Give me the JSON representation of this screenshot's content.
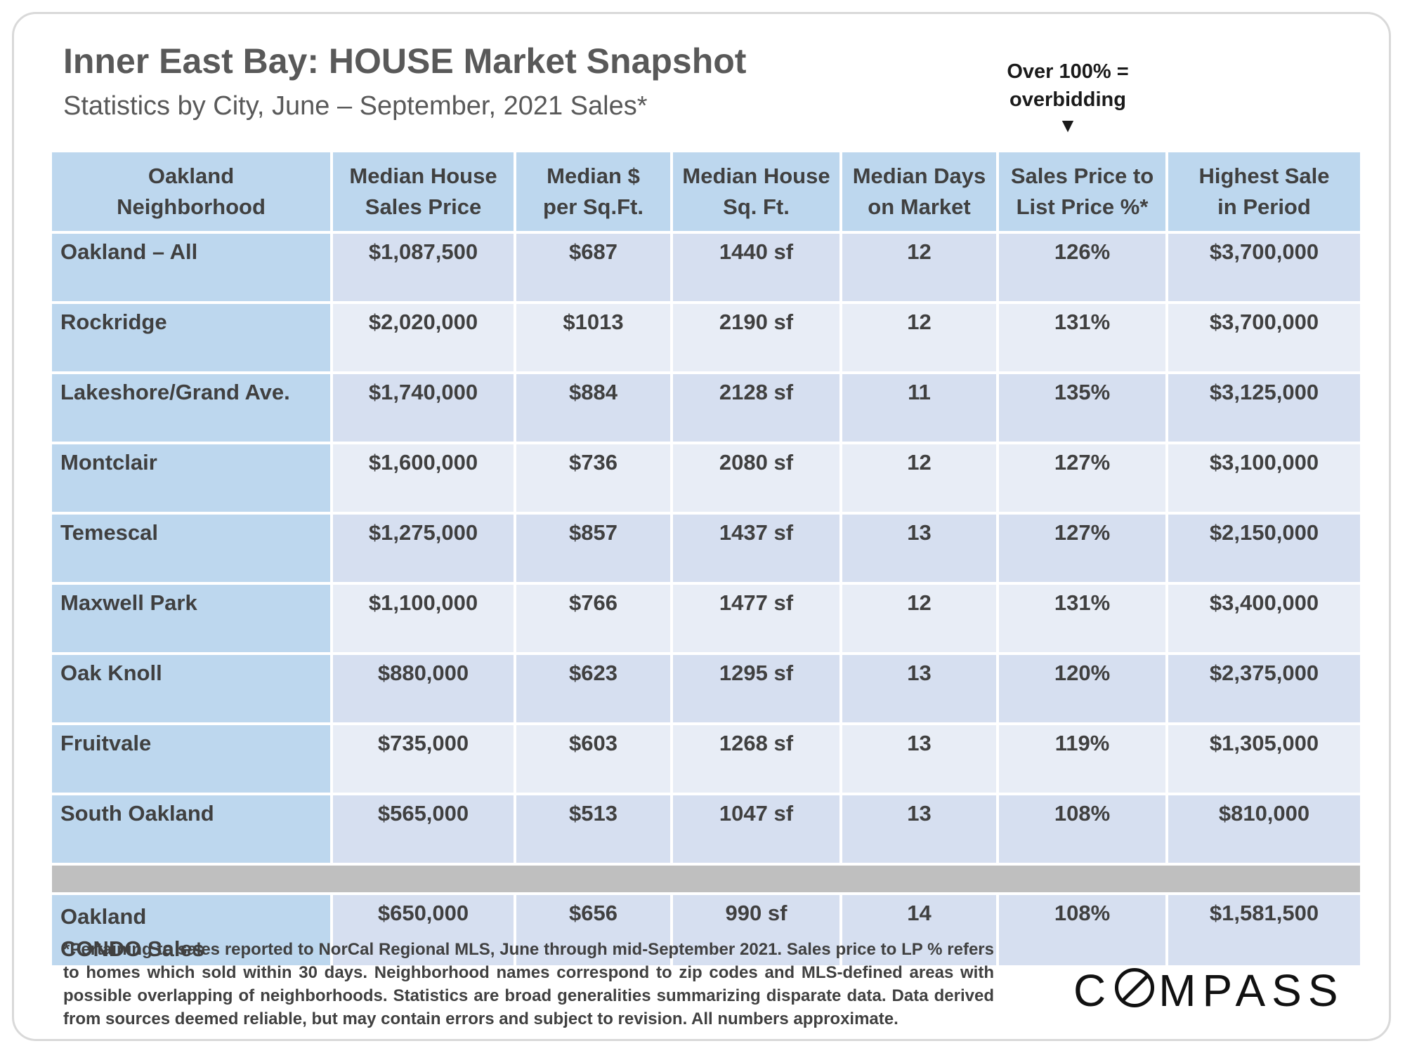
{
  "title": "Inner East Bay: HOUSE Market Snapshot",
  "subtitle": "Statistics by City, June – September, 2021 Sales*",
  "note": {
    "line1": "Over 100% =",
    "line2": "overbidding",
    "arrow": "▼"
  },
  "table": {
    "headers": [
      [
        "Oakland",
        "Neighborhood"
      ],
      [
        "Median House",
        "Sales Price"
      ],
      [
        "Median $",
        "per Sq.Ft."
      ],
      [
        "Median House",
        "Sq. Ft."
      ],
      [
        "Median Days",
        "on Market"
      ],
      [
        "Sales Price to",
        "List Price %*"
      ],
      [
        "Highest Sale",
        "in Period"
      ]
    ],
    "rows": [
      [
        "Oakland – All",
        "$1,087,500",
        "$687",
        "1440 sf",
        "12",
        "126%",
        "$3,700,000"
      ],
      [
        "Rockridge",
        "$2,020,000",
        "$1013",
        "2190 sf",
        "12",
        "131%",
        "$3,700,000"
      ],
      [
        "Lakeshore/Grand Ave.",
        "$1,740,000",
        "$884",
        "2128 sf",
        "11",
        "135%",
        "$3,125,000"
      ],
      [
        "Montclair",
        "$1,600,000",
        "$736",
        "2080 sf",
        "12",
        "127%",
        "$3,100,000"
      ],
      [
        "Temescal",
        "$1,275,000",
        "$857",
        "1437 sf",
        "13",
        "127%",
        "$2,150,000"
      ],
      [
        "Maxwell Park",
        "$1,100,000",
        "$766",
        "1477 sf",
        "12",
        "131%",
        "$3,400,000"
      ],
      [
        "Oak Knoll",
        "$880,000",
        "$623",
        "1295 sf",
        "13",
        "120%",
        "$2,375,000"
      ],
      [
        "Fruitvale",
        "$735,000",
        "$603",
        "1268 sf",
        "13",
        "119%",
        "$1,305,000"
      ],
      [
        "South Oakland",
        "$565,000",
        "$513",
        "1047 sf",
        "13",
        "108%",
        "$810,000"
      ]
    ],
    "condo": {
      "name_line1": "Oakland",
      "name_line2": "CONDO Sales",
      "values": [
        "$650,000",
        "$656",
        "990 sf",
        "14",
        "108%",
        "$1,581,500"
      ]
    }
  },
  "footnote": "*Pertaining to sales reported to NorCal Regional MLS, June through mid-September 2021. Sales price to LP % refers to homes which sold within 30 days. Neighborhood names correspond to zip codes and MLS-defined areas with possible overlapping of neighborhoods. Statistics are broad generalities summarizing disparate data. Data derived from sources deemed reliable, but may contain errors and subject to revision. All numbers approximate.",
  "logo": {
    "part1": "C",
    "part2": "MPASS"
  },
  "colors": {
    "header_bg": "#bdd7ee",
    "row_odd": "#d6dff0",
    "row_even": "#e8edf6",
    "separator": "#bfbfbf",
    "text": "#404040"
  }
}
